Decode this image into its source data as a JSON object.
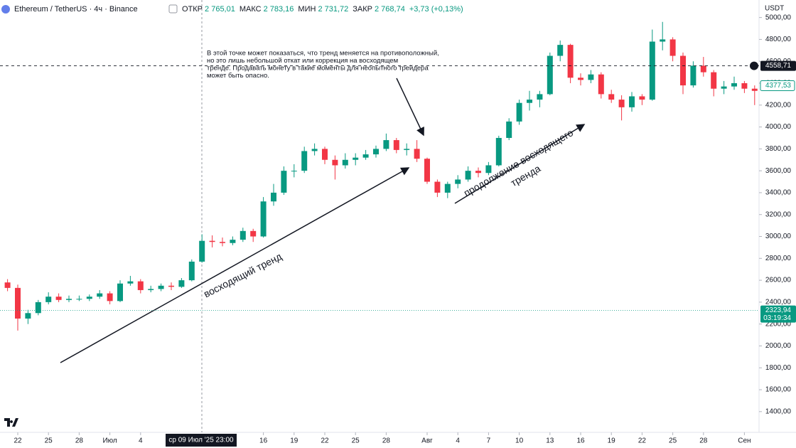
{
  "header": {
    "symbol": "Ethereum / TetherUS · 4ч · Binance",
    "quote": [
      {
        "label": "ОТКР",
        "value": "2 765,01"
      },
      {
        "label": "МАКС",
        "value": "2 783,16"
      },
      {
        "label": "МИН",
        "value": "2 731,72"
      },
      {
        "label": "ЗАКР",
        "value": "2 768,74"
      }
    ],
    "change": "+3,73 (+0,13%)",
    "currency": "USDT"
  },
  "chart_data": {
    "type": "candlestick",
    "categories": [
      null,
      "22",
      null,
      null,
      "25",
      null,
      null,
      "28",
      null,
      null,
      "Июл",
      null,
      null,
      "4",
      null,
      null,
      null,
      null,
      null,
      null,
      null,
      null,
      null,
      null,
      null,
      "16",
      null,
      null,
      "19",
      null,
      null,
      "22",
      null,
      null,
      "25",
      null,
      null,
      "28",
      null,
      null,
      null,
      "Авг",
      null,
      null,
      "4",
      null,
      null,
      "7",
      null,
      null,
      "10",
      null,
      null,
      "13",
      null,
      null,
      "16",
      null,
      null,
      "19",
      null,
      null,
      "22",
      null,
      null,
      "25",
      null,
      null,
      "28",
      null,
      null,
      null,
      "Сен",
      null
    ],
    "ohlc": [
      [
        2580,
        2610,
        2500,
        2530
      ],
      [
        2530,
        2560,
        2140,
        2250
      ],
      [
        2250,
        2330,
        2200,
        2300
      ],
      [
        2300,
        2420,
        2280,
        2400
      ],
      [
        2400,
        2490,
        2380,
        2450
      ],
      [
        2450,
        2480,
        2400,
        2420
      ],
      [
        2420,
        2460,
        2400,
        2430
      ],
      [
        2430,
        2460,
        2410,
        2430
      ],
      [
        2430,
        2470,
        2410,
        2450
      ],
      [
        2450,
        2510,
        2430,
        2480
      ],
      [
        2480,
        2500,
        2380,
        2410
      ],
      [
        2410,
        2600,
        2400,
        2570
      ],
      [
        2570,
        2640,
        2550,
        2590
      ],
      [
        2590,
        2610,
        2480,
        2510
      ],
      [
        2510,
        2550,
        2490,
        2520
      ],
      [
        2520,
        2570,
        2500,
        2550
      ],
      [
        2550,
        2580,
        2510,
        2540
      ],
      [
        2540,
        2620,
        2530,
        2600
      ],
      [
        2600,
        2790,
        2590,
        2770
      ],
      [
        2770,
        3020,
        2760,
        2960
      ],
      [
        2960,
        3010,
        2900,
        2950
      ],
      [
        2950,
        2990,
        2910,
        2940
      ],
      [
        2940,
        3000,
        2920,
        2970
      ],
      [
        2970,
        3080,
        2950,
        3050
      ],
      [
        3050,
        3070,
        2950,
        3000
      ],
      [
        3000,
        3360,
        2990,
        3320
      ],
      [
        3320,
        3480,
        3280,
        3400
      ],
      [
        3400,
        3640,
        3380,
        3600
      ],
      [
        3600,
        3660,
        3540,
        3600
      ],
      [
        3600,
        3820,
        3580,
        3780
      ],
      [
        3780,
        3850,
        3740,
        3800
      ],
      [
        3800,
        3820,
        3660,
        3700
      ],
      [
        3700,
        3740,
        3520,
        3650
      ],
      [
        3650,
        3760,
        3620,
        3700
      ],
      [
        3700,
        3760,
        3650,
        3720
      ],
      [
        3720,
        3790,
        3700,
        3750
      ],
      [
        3750,
        3830,
        3720,
        3800
      ],
      [
        3800,
        3940,
        3780,
        3880
      ],
      [
        3880,
        3900,
        3760,
        3790
      ],
      [
        3790,
        3850,
        3740,
        3800
      ],
      [
        3800,
        3880,
        3680,
        3710
      ],
      [
        3710,
        3720,
        3480,
        3500
      ],
      [
        3500,
        3520,
        3360,
        3400
      ],
      [
        3400,
        3500,
        3350,
        3480
      ],
      [
        3480,
        3560,
        3440,
        3520
      ],
      [
        3520,
        3640,
        3500,
        3600
      ],
      [
        3600,
        3630,
        3540,
        3580
      ],
      [
        3580,
        3680,
        3560,
        3650
      ],
      [
        3650,
        3920,
        3640,
        3900
      ],
      [
        3900,
        4080,
        3880,
        4050
      ],
      [
        4050,
        4250,
        4020,
        4220
      ],
      [
        4220,
        4330,
        4150,
        4250
      ],
      [
        4250,
        4330,
        4180,
        4300
      ],
      [
        4300,
        4680,
        4290,
        4650
      ],
      [
        4650,
        4790,
        4600,
        4750
      ],
      [
        4750,
        4760,
        4400,
        4450
      ],
      [
        4450,
        4490,
        4380,
        4430
      ],
      [
        4430,
        4520,
        4400,
        4480
      ],
      [
        4480,
        4500,
        4260,
        4300
      ],
      [
        4300,
        4340,
        4220,
        4250
      ],
      [
        4250,
        4290,
        4060,
        4180
      ],
      [
        4180,
        4320,
        4140,
        4280
      ],
      [
        4280,
        4300,
        4200,
        4250
      ],
      [
        4250,
        4890,
        4240,
        4780
      ],
      [
        4780,
        4960,
        4700,
        4800
      ],
      [
        4800,
        4820,
        4600,
        4650
      ],
      [
        4650,
        4680,
        4300,
        4380
      ],
      [
        4380,
        4600,
        4360,
        4560
      ],
      [
        4560,
        4640,
        4460,
        4500
      ],
      [
        4500,
        4520,
        4280,
        4350
      ],
      [
        4350,
        4420,
        4300,
        4370
      ],
      [
        4370,
        4460,
        4340,
        4400
      ],
      [
        4400,
        4420,
        4310,
        4350
      ],
      [
        4350,
        4380,
        4200,
        4330
      ]
    ],
    "up_color": "#089981",
    "down_color": "#f23645",
    "ylim": [
      1230,
      5160
    ],
    "yticks": [
      {
        "value": 1400,
        "label": "1400,00"
      },
      {
        "value": 1600,
        "label": "1600,00"
      },
      {
        "value": 1800,
        "label": "1800,00"
      },
      {
        "value": 2000,
        "label": "2000,00"
      },
      {
        "value": 2200,
        "label": "2200,00"
      },
      {
        "value": 2400,
        "label": "2400,00"
      },
      {
        "value": 2600,
        "label": "2600,00"
      },
      {
        "value": 2800,
        "label": "2800,00"
      },
      {
        "value": 3000,
        "label": "3000,00"
      },
      {
        "value": 3200,
        "label": "3200,00"
      },
      {
        "value": 3400,
        "label": "3400,00"
      },
      {
        "value": 3600,
        "label": "3600,00"
      },
      {
        "value": 3800,
        "label": "3800,00"
      },
      {
        "value": 4000,
        "label": "4000,00"
      },
      {
        "value": 4200,
        "label": "4200,00"
      },
      {
        "value": 4400,
        "label": "4400,00"
      },
      {
        "value": 4600,
        "label": "4600,00"
      },
      {
        "value": 4800,
        "label": "4800,00"
      },
      {
        "value": 5000,
        "label": "5000,00"
      }
    ],
    "price_lines": [
      {
        "value": 4558.71,
        "label": "4558,71",
        "color": "#131722",
        "style": "dashed"
      },
      {
        "value": 4377.53,
        "label": "4377,53",
        "color": "#089981",
        "style": "outline"
      },
      {
        "value": 2323.94,
        "label": "2323,94",
        "countdown": "03:19:34",
        "color": "#089981",
        "style": "dotted"
      }
    ],
    "crosshair_label": "ср 09 Июл '25 23:00",
    "annotations": {
      "note": [
        "В этой точке может показаться, что тренд меняется на противоположный,",
        "но это лишь небольшой откат или коррекция на восходящем",
        "тренде. Продавать монету в такие моменты для неопытного трейдера",
        "может быть опасно."
      ],
      "uptrend": "восходящий тренд",
      "continuation": [
        "продолжение восходящего",
        "тренда"
      ]
    }
  }
}
